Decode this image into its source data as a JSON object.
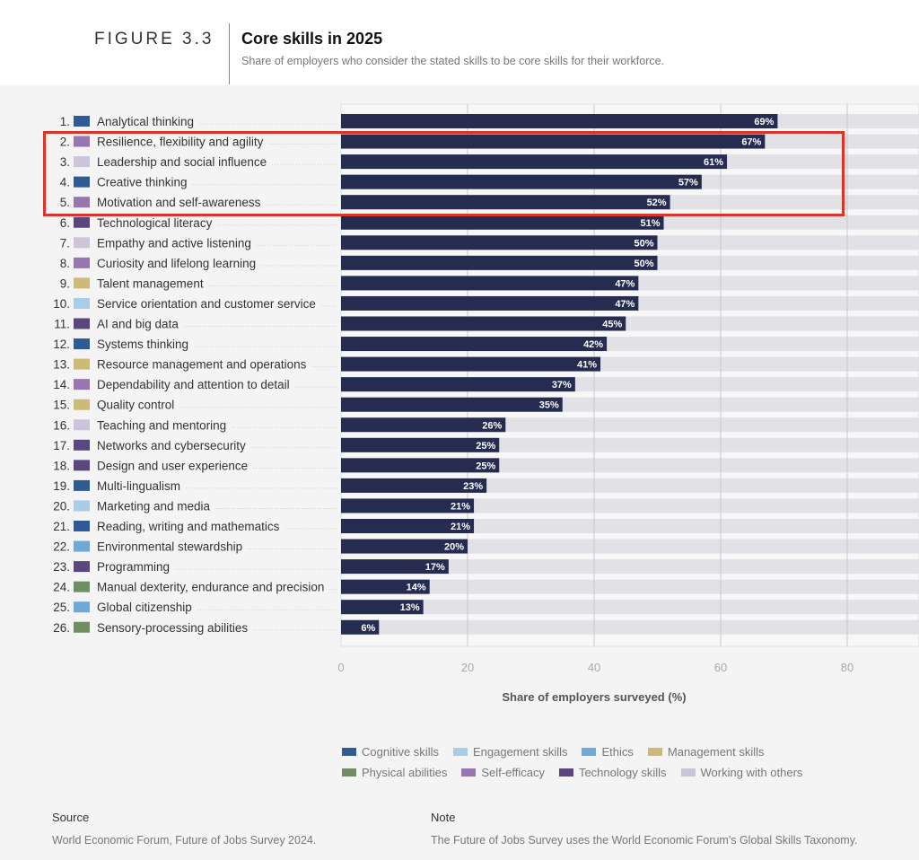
{
  "header": {
    "figure_label": "FIGURE 3.3",
    "title": "Core skills in 2025",
    "subtitle": "Share of employers who consider the stated skills to be core skills for their workforce."
  },
  "chart_data": {
    "type": "bar",
    "orientation": "horizontal",
    "xlabel": "Share of employers surveyed (%)",
    "xticks": [
      0,
      20,
      40,
      60,
      80
    ],
    "xlim": [
      0,
      100
    ],
    "grid": true,
    "legend_placement": "bottom",
    "bar_color": "#262b50",
    "track_color": "#e2e2e6",
    "categories": [
      "Analytical thinking",
      "Resilience, flexibility and agility",
      "Leadership and social influence",
      "Creative thinking",
      "Motivation and self-awareness",
      "Technological literacy",
      "Empathy and active listening",
      "Curiosity and lifelong learning",
      "Talent management",
      "Service orientation and customer service",
      "AI and big data",
      "Systems thinking",
      "Resource management and operations",
      "Dependability and attention to detail",
      "Quality control",
      "Teaching and mentoring",
      "Networks and cybersecurity",
      "Design and user experience",
      "Multi-lingualism",
      "Marketing and media",
      "Reading, writing and mathematics",
      "Environmental stewardship",
      "Programming",
      "Manual dexterity, endurance and precision",
      "Global citizenship",
      "Sensory-processing abilities"
    ],
    "values": [
      69,
      67,
      61,
      57,
      52,
      51,
      50,
      50,
      47,
      47,
      45,
      42,
      41,
      37,
      35,
      26,
      25,
      25,
      23,
      21,
      21,
      20,
      17,
      14,
      13,
      6
    ],
    "skill_group": [
      "cognitive",
      "self_efficacy",
      "working",
      "cognitive",
      "self_efficacy",
      "technology",
      "working",
      "self_efficacy",
      "management",
      "engagement",
      "technology",
      "cognitive",
      "management",
      "self_efficacy",
      "management",
      "working",
      "technology",
      "technology",
      "cognitive",
      "engagement",
      "cognitive",
      "ethics",
      "technology",
      "physical",
      "ethics",
      "physical"
    ],
    "legend": [
      {
        "key": "cognitive",
        "label": "Cognitive skills",
        "color": "#2e5b94"
      },
      {
        "key": "engagement",
        "label": "Engagement skills",
        "color": "#a9cde6"
      },
      {
        "key": "ethics",
        "label": "Ethics",
        "color": "#6fa9d8"
      },
      {
        "key": "management",
        "label": "Management skills",
        "color": "#cdb978"
      },
      {
        "key": "physical",
        "label": "Physical abilities",
        "color": "#6f8f63"
      },
      {
        "key": "self_efficacy",
        "label": "Self-efficacy",
        "color": "#9776b0"
      },
      {
        "key": "technology",
        "label": "Technology skills",
        "color": "#5b4680"
      },
      {
        "key": "working",
        "label": "Working with others",
        "color": "#cdc3db"
      }
    ],
    "highlight": {
      "ranks": [
        2,
        3,
        4,
        5
      ],
      "color": "#d9362b"
    }
  },
  "footer": {
    "source_heading": "Source",
    "source_text": "World Economic Forum, Future of Jobs Survey 2024.",
    "note_heading": "Note",
    "note_text": "The Future of Jobs Survey uses the World Economic Forum's Global Skills Taxonomy."
  }
}
